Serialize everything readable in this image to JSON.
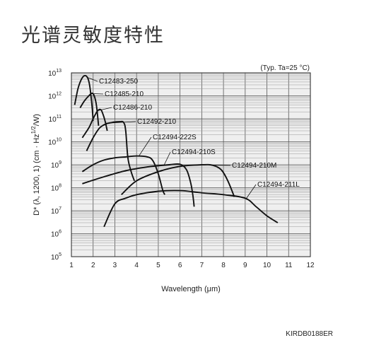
{
  "page": {
    "title": "光谱灵敏度特性",
    "doc_code": "KIRDB0188ER"
  },
  "chart_data": {
    "type": "line",
    "title": "",
    "note": "(Typ. Ta=25 °C)",
    "xlabel": "Wavelength (μm)",
    "ylabel": "D* (λ, 1200, 1) (cm · Hz1/2/W)",
    "xlim": [
      1,
      12
    ],
    "ylim": [
      100000,
      10000000000000
    ],
    "yscale": "log",
    "grid": true,
    "x_ticks": [
      "1",
      "2",
      "3",
      "4",
      "5",
      "6",
      "7",
      "8",
      "9",
      "10",
      "11",
      "12"
    ],
    "y_ticks": [
      {
        "base": "10",
        "exp": "13"
      },
      {
        "base": "10",
        "exp": "12"
      },
      {
        "base": "10",
        "exp": "11"
      },
      {
        "base": "10",
        "exp": "10"
      },
      {
        "base": "10",
        "exp": "9"
      },
      {
        "base": "10",
        "exp": "8"
      },
      {
        "base": "10",
        "exp": "7"
      },
      {
        "base": "10",
        "exp": "6"
      },
      {
        "base": "10",
        "exp": "5"
      }
    ],
    "series": [
      {
        "name": "C12483-250",
        "points": [
          [
            1.15,
            400000000000.0
          ],
          [
            1.3,
            2000000000000.0
          ],
          [
            1.45,
            5000000000000.0
          ],
          [
            1.6,
            7500000000000.0
          ],
          [
            1.75,
            6000000000000.0
          ],
          [
            1.85,
            2500000000000.0
          ],
          [
            1.95,
            350000000000.0
          ],
          [
            2.0,
            80000000000.0
          ]
        ]
      },
      {
        "name": "C12485-210",
        "points": [
          [
            1.4,
            300000000000.0
          ],
          [
            1.6,
            600000000000.0
          ],
          [
            1.8,
            1000000000000.0
          ],
          [
            1.95,
            1300000000000.0
          ],
          [
            2.05,
            1000000000000.0
          ],
          [
            2.15,
            400000000000.0
          ],
          [
            2.25,
            50000000000.0
          ]
        ]
      },
      {
        "name": "C12486-210",
        "points": [
          [
            1.5,
            15000000000.0
          ],
          [
            1.8,
            40000000000.0
          ],
          [
            2.0,
            100000000000.0
          ],
          [
            2.2,
            220000000000.0
          ],
          [
            2.35,
            250000000000.0
          ],
          [
            2.45,
            160000000000.0
          ],
          [
            2.55,
            80000000000.0
          ],
          [
            2.65,
            30000000000.0
          ]
        ]
      },
      {
        "name": "C12492-210",
        "points": [
          [
            1.7,
            4000000000.0
          ],
          [
            2.0,
            15000000000.0
          ],
          [
            2.3,
            40000000000.0
          ],
          [
            2.6,
            60000000000.0
          ],
          [
            2.9,
            70000000000.0
          ],
          [
            3.2,
            75000000000.0
          ],
          [
            3.4,
            70000000000.0
          ],
          [
            3.5,
            30000000000.0
          ],
          [
            3.6,
            2000000000.0
          ],
          [
            3.75,
            500000000.0
          ],
          [
            3.9,
            200000000.0
          ]
        ]
      },
      {
        "name": "C12494-222S",
        "points": [
          [
            1.5,
            500000000.0
          ],
          [
            2.0,
            1000000000.0
          ],
          [
            2.5,
            1600000000.0
          ],
          [
            3.0,
            2000000000.0
          ],
          [
            3.5,
            2200000000.0
          ],
          [
            4.0,
            2400000000.0
          ],
          [
            4.5,
            2200000000.0
          ],
          [
            4.75,
            1500000000.0
          ],
          [
            5.0,
            400000000.0
          ],
          [
            5.2,
            80000000.0
          ],
          [
            5.3,
            50000000.0
          ]
        ]
      },
      {
        "name": "C12494-210S",
        "points": [
          [
            1.5,
            150000000.0
          ],
          [
            2.5,
            300000000.0
          ],
          [
            3.5,
            550000000.0
          ],
          [
            4.5,
            800000000.0
          ],
          [
            5.5,
            1000000000.0
          ],
          [
            6.0,
            1050000000.0
          ],
          [
            6.3,
            600000000.0
          ],
          [
            6.5,
            150000000.0
          ],
          [
            6.6,
            40000000.0
          ],
          [
            6.65,
            15000000.0
          ]
        ]
      },
      {
        "name": "C12494-210M",
        "points": [
          [
            3.3,
            50000000.0
          ],
          [
            4.0,
            200000000.0
          ],
          [
            5.0,
            500000000.0
          ],
          [
            6.0,
            850000000.0
          ],
          [
            7.0,
            1000000000.0
          ],
          [
            7.5,
            950000000.0
          ],
          [
            7.9,
            600000000.0
          ],
          [
            8.2,
            200000000.0
          ],
          [
            8.5,
            40000000.0
          ]
        ]
      },
      {
        "name": "C12494-211L",
        "points": [
          [
            2.5,
            2000000.0
          ],
          [
            3.0,
            20000000.0
          ],
          [
            3.5,
            35000000.0
          ],
          [
            4.0,
            50000000.0
          ],
          [
            5.0,
            70000000.0
          ],
          [
            6.0,
            75000000.0
          ],
          [
            7.0,
            60000000.0
          ],
          [
            8.0,
            50000000.0
          ],
          [
            9.0,
            35000000.0
          ],
          [
            9.5,
            15000000.0
          ],
          [
            10.0,
            6000000.0
          ],
          [
            10.5,
            3000000.0
          ]
        ]
      }
    ]
  }
}
